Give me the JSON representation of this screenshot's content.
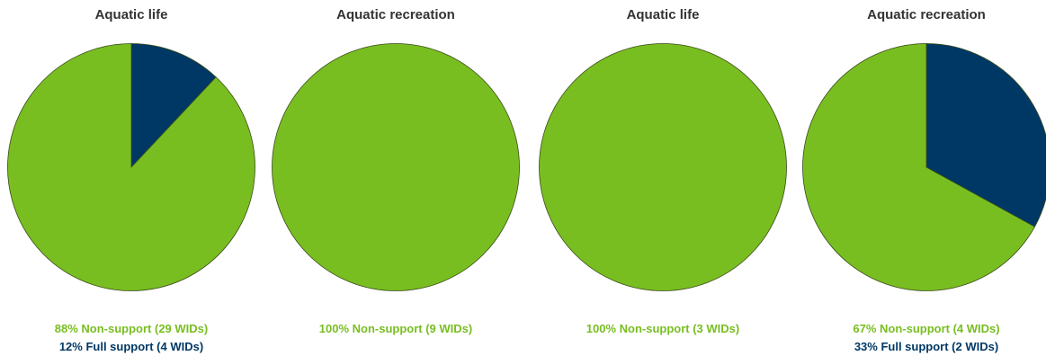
{
  "colors": {
    "non_support": "#78BE21",
    "full_support": "#003865",
    "stroke": "#3b4a1a"
  },
  "chart_data": [
    {
      "type": "pie",
      "title": "Aquatic life",
      "slices": [
        {
          "name": "Non-support",
          "value": 88,
          "label": "88% Non-support (29 WIDs)",
          "color": "#78BE21"
        },
        {
          "name": "Full support",
          "value": 12,
          "label": "12% Full support (4 WIDs)",
          "color": "#003865"
        }
      ]
    },
    {
      "type": "pie",
      "title": "Aquatic recreation",
      "slices": [
        {
          "name": "Non-support",
          "value": 100,
          "label": "100% Non-support (9 WIDs)",
          "color": "#78BE21"
        }
      ]
    },
    {
      "type": "pie",
      "title": "Aquatic life",
      "slices": [
        {
          "name": "Non-support",
          "value": 100,
          "label": "100% Non-support (3 WIDs)",
          "color": "#78BE21"
        }
      ]
    },
    {
      "type": "pie",
      "title": "Aquatic recreation",
      "slices": [
        {
          "name": "Non-support",
          "value": 67,
          "label": "67% Non-support (4 WIDs)",
          "color": "#78BE21"
        },
        {
          "name": "Full support",
          "value": 33,
          "label": "33% Full support (2 WIDs)",
          "color": "#003865"
        }
      ]
    }
  ]
}
